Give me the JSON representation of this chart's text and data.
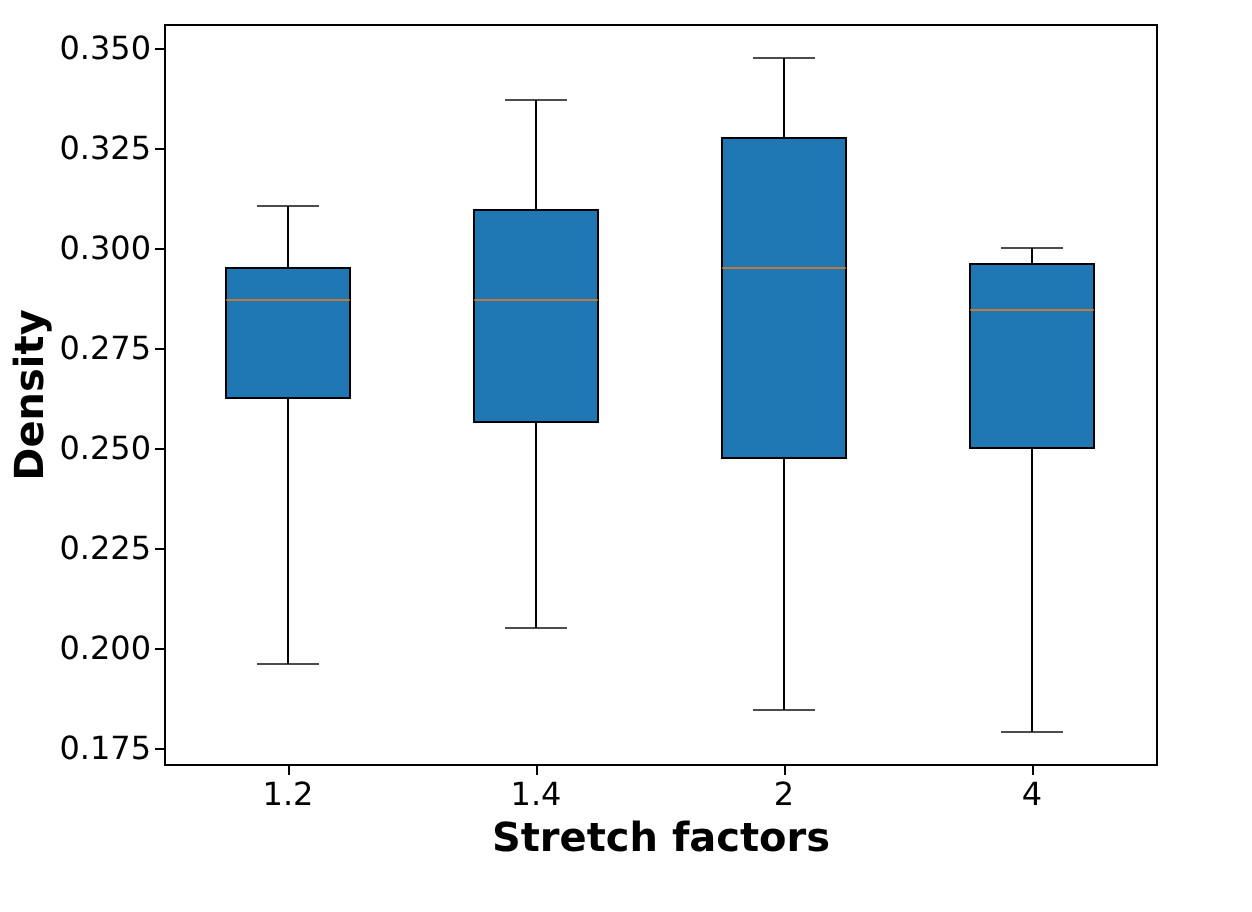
{
  "chart_data": {
    "type": "box",
    "xlabel": "Stretch factors",
    "ylabel": "Density",
    "categories": [
      "1.2",
      "1.4",
      "2",
      "4"
    ],
    "ylim": [
      0.171,
      0.356
    ],
    "yticks": [
      {
        "value": 0.175,
        "label": "0.175"
      },
      {
        "value": 0.2,
        "label": "0.200"
      },
      {
        "value": 0.225,
        "label": "0.225"
      },
      {
        "value": 0.25,
        "label": "0.250"
      },
      {
        "value": 0.275,
        "label": "0.275"
      },
      {
        "value": 0.3,
        "label": "0.300"
      },
      {
        "value": 0.325,
        "label": "0.325"
      },
      {
        "value": 0.35,
        "label": "0.350"
      }
    ],
    "grid": false,
    "series": [
      {
        "color": "#1f77b4",
        "boxes": [
          {
            "low": 0.196,
            "q1": 0.2625,
            "median": 0.287,
            "q3": 0.295,
            "high": 0.3105
          },
          {
            "low": 0.205,
            "q1": 0.2565,
            "median": 0.287,
            "q3": 0.3095,
            "high": 0.337
          },
          {
            "low": 0.1845,
            "q1": 0.2475,
            "median": 0.295,
            "q3": 0.3275,
            "high": 0.3475
          },
          {
            "low": 0.179,
            "q1": 0.25,
            "median": 0.2845,
            "q3": 0.296,
            "high": 0.3
          }
        ]
      }
    ]
  }
}
